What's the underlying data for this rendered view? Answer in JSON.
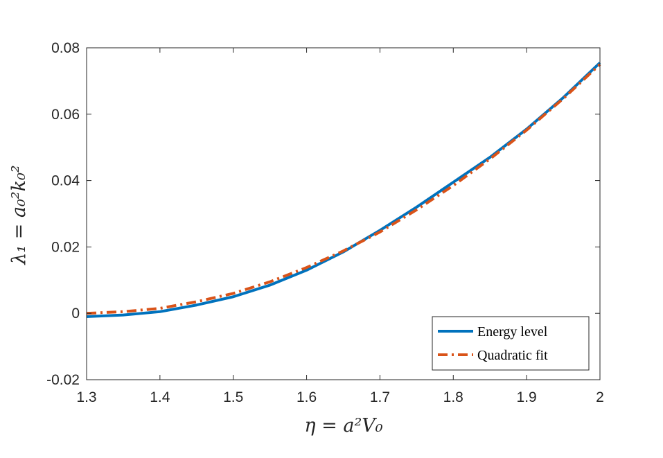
{
  "chart_data": {
    "type": "line",
    "title": "",
    "xlabel": "η = a²V₀",
    "ylabel": "λ₁ = a₀²k₀²",
    "xlim": [
      1.3,
      2.0
    ],
    "ylim": [
      -0.02,
      0.08
    ],
    "xticks": [
      1.3,
      1.4,
      1.5,
      1.6,
      1.7,
      1.8,
      1.9,
      2.0
    ],
    "xtick_labels": [
      "1.3",
      "1.4",
      "1.5",
      "1.6",
      "1.7",
      "1.8",
      "1.9",
      "2"
    ],
    "yticks": [
      -0.02,
      0,
      0.02,
      0.04,
      0.06,
      0.08
    ],
    "ytick_labels": [
      "-0.02",
      "0",
      "0.02",
      "0.04",
      "0.06",
      "0.08"
    ],
    "grid": false,
    "legend_position": "bottom-right",
    "x": [
      1.3,
      1.35,
      1.4,
      1.45,
      1.5,
      1.55,
      1.6,
      1.65,
      1.7,
      1.75,
      1.8,
      1.85,
      1.9,
      1.95,
      2.0
    ],
    "series": [
      {
        "name": "Energy level",
        "color": "#0072BD",
        "line_style": "solid",
        "values": [
          -0.001,
          -0.0005,
          0.0005,
          0.0025,
          0.005,
          0.0085,
          0.013,
          0.0185,
          0.025,
          0.032,
          0.0395,
          0.047,
          0.0555,
          0.065,
          0.0755
        ]
      },
      {
        "name": "Quadratic fit",
        "color": "#D95319",
        "line_style": "dash-dot",
        "values": [
          0.0,
          0.0005,
          0.0015,
          0.0035,
          0.006,
          0.0095,
          0.0138,
          0.0188,
          0.0245,
          0.0312,
          0.0385,
          0.0465,
          0.0552,
          0.0647,
          0.075
        ]
      }
    ]
  }
}
